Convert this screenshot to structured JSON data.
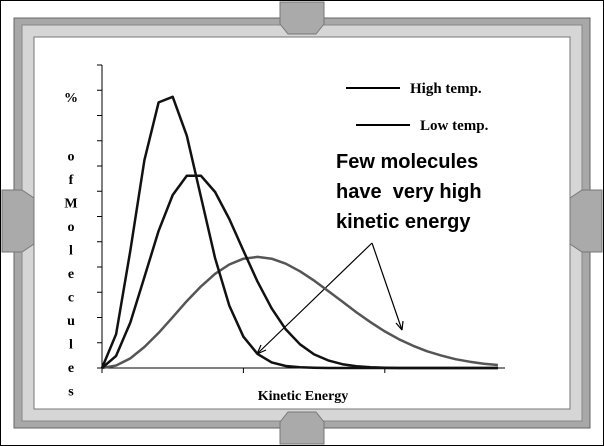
{
  "chart_data": {
    "type": "line",
    "x_label": "Kinetic Energy",
    "y_label": "% of Molecules",
    "annotation": [
      "Few molecules",
      "have  very high",
      "kinetic energy"
    ],
    "x": [
      0,
      0.1,
      0.2,
      0.3,
      0.4,
      0.5,
      0.6,
      0.7,
      0.8,
      0.9,
      1.0,
      1.1,
      1.2,
      1.3,
      1.4,
      1.5,
      1.6,
      1.7,
      1.8,
      1.9,
      2.0,
      2.1,
      2.2,
      2.3,
      2.4,
      2.5,
      2.6,
      2.7,
      2.8
    ],
    "series": [
      {
        "name": "High temp.",
        "color": "#555555",
        "values": [
          0,
          0.1,
          0.38,
          0.83,
          1.39,
          2.01,
          2.65,
          3.23,
          3.73,
          4.1,
          4.33,
          4.4,
          4.33,
          4.13,
          3.83,
          3.46,
          3.05,
          2.63,
          2.2,
          1.81,
          1.45,
          1.14,
          0.88,
          0.66,
          0.49,
          0.35,
          0.25,
          0.17,
          0.12
        ]
      },
      {
        "name": "Low temp.",
        "color": "#111111",
        "values": [
          0,
          1.34,
          4.64,
          8.23,
          10.52,
          10.74,
          9.2,
          6.77,
          4.35,
          2.47,
          1.24,
          0.56,
          0.22,
          0.08,
          0.03,
          0.01,
          0,
          0,
          0,
          0,
          0,
          0,
          0,
          0,
          0,
          0,
          0,
          0,
          0
        ]
      },
      {
        "color": "#111111",
        "values": [
          0,
          0.48,
          1.8,
          3.6,
          5.43,
          6.85,
          7.61,
          7.61,
          6.97,
          5.9,
          4.65,
          3.42,
          2.36,
          1.53,
          0.94,
          0.54,
          0.3,
          0.15,
          0.07,
          0.03,
          0.01,
          0,
          0,
          0,
          0,
          0,
          0,
          0,
          0
        ]
      }
    ],
    "xlim": [
      0,
      2.85
    ],
    "xticks": [
      0,
      1,
      2
    ],
    "ylim": [
      0,
      12
    ],
    "yticks": [
      0,
      1,
      2,
      3,
      4,
      5,
      6,
      7,
      8,
      9,
      10,
      11,
      12
    ],
    "legend": "upper right"
  }
}
